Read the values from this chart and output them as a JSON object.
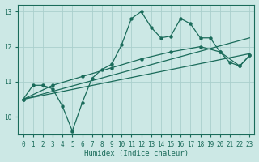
{
  "xlabel": "Humidex (Indice chaleur)",
  "bg_color": "#cce8e5",
  "grid_color": "#aacfcc",
  "line_color": "#1a6b5a",
  "xlim": [
    -0.5,
    23.5
  ],
  "ylim": [
    9.5,
    13.2
  ],
  "yticks": [
    10,
    11,
    12,
    13
  ],
  "xticks": [
    0,
    1,
    2,
    3,
    4,
    5,
    6,
    7,
    8,
    9,
    10,
    11,
    12,
    13,
    14,
    15,
    16,
    17,
    18,
    19,
    20,
    21,
    22,
    23
  ],
  "line1_x": [
    0,
    1,
    2,
    3,
    4,
    5,
    6,
    7,
    8,
    9,
    10,
    11,
    12,
    13,
    14,
    15,
    16,
    17,
    18,
    19,
    20,
    21,
    22,
    23
  ],
  "line1_y": [
    10.5,
    10.9,
    10.9,
    10.8,
    10.3,
    9.6,
    10.4,
    11.1,
    11.35,
    11.5,
    12.05,
    12.8,
    13.0,
    12.55,
    12.25,
    12.3,
    12.8,
    12.65,
    12.25,
    12.25,
    11.85,
    11.55,
    11.45,
    11.75
  ],
  "line2_x": [
    0,
    3,
    6,
    9,
    12,
    15,
    18,
    20,
    22,
    23
  ],
  "line2_y": [
    10.5,
    10.9,
    11.15,
    11.4,
    11.65,
    11.85,
    12.0,
    11.85,
    11.45,
    11.75
  ],
  "line3_x": [
    0,
    23
  ],
  "line3_y": [
    10.5,
    12.25
  ],
  "line4_x": [
    0,
    23
  ],
  "line4_y": [
    10.5,
    11.8
  ]
}
